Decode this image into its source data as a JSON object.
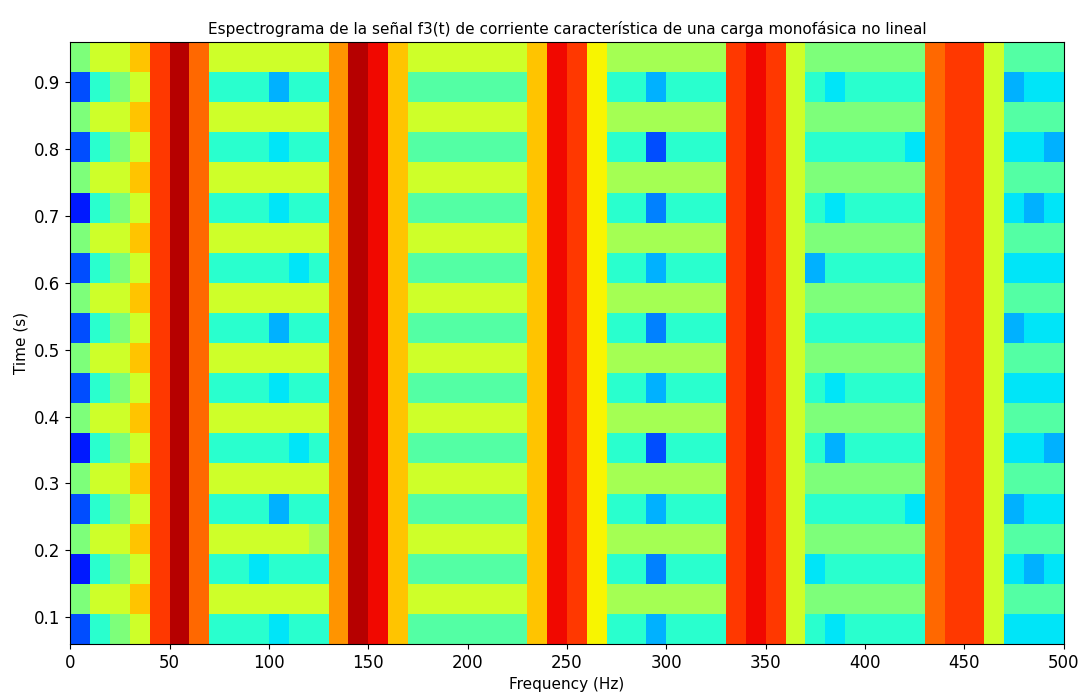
{
  "chart_data": {
    "type": "heatmap",
    "title": "Espectrograma de la señal f3(t) de corriente característica de una carga monofásica no lineal",
    "x_label": "Frequency (Hz)",
    "y_label": "Time (s)",
    "color": "jet",
    "color_range": [
      0,
      10
    ],
    "xlim": [
      0,
      500
    ],
    "ylim": [
      0.06,
      0.96
    ],
    "xticks": [
      0,
      50,
      100,
      150,
      200,
      250,
      300,
      350,
      400,
      450,
      500
    ],
    "yticks": [
      0.1,
      0.2,
      0.3,
      0.4,
      0.5,
      0.6,
      0.7,
      0.8,
      0.9
    ],
    "frequency_edges": [
      0,
      10,
      20,
      30,
      40,
      50,
      60,
      70,
      80,
      90,
      100,
      110,
      120,
      130,
      140,
      150,
      160,
      170,
      180,
      190,
      200,
      210,
      220,
      230,
      240,
      250,
      260,
      270,
      280,
      290,
      300,
      310,
      320,
      330,
      340,
      350,
      360,
      370,
      380,
      390,
      400,
      410,
      420,
      430,
      440,
      450,
      460,
      470,
      480,
      490,
      500
    ],
    "time_edges": [
      0.06,
      0.105,
      0.15,
      0.195,
      0.24,
      0.285,
      0.33,
      0.375,
      0.42,
      0.465,
      0.51,
      0.555,
      0.6,
      0.645,
      0.69,
      0.735,
      0.78,
      0.825,
      0.87,
      0.915,
      0.96
    ],
    "cells": [
      [
        2,
        4,
        5,
        6,
        8.5,
        9.5,
        8,
        4,
        4,
        4,
        3.5,
        4,
        4,
        7.5,
        9.5,
        9,
        7,
        4.5,
        4.5,
        4.5,
        4.5,
        4.5,
        4.5,
        7,
        9,
        8.5,
        6.5,
        4,
        4,
        3,
        4,
        4,
        4,
        8.5,
        9,
        8.5,
        6,
        4,
        3.5,
        4,
        4,
        4,
        4,
        8,
        8.5,
        8.5,
        6,
        3.5,
        3.5,
        3.5
      ],
      [
        5,
        6,
        6,
        7,
        8.5,
        9.5,
        8,
        6,
        6,
        6,
        6,
        6,
        6,
        7.5,
        9.5,
        9,
        7,
        6,
        6,
        6,
        6,
        6,
        6,
        7,
        9,
        8.5,
        6.5,
        5.5,
        5.5,
        5.5,
        5.5,
        5.5,
        5.5,
        8.5,
        9,
        8.5,
        6,
        5,
        5,
        5,
        5,
        5,
        5,
        8,
        8.5,
        8.5,
        6,
        4.5,
        4.5,
        4.5
      ],
      [
        1.5,
        4,
        5,
        6,
        8.5,
        9.5,
        8,
        4,
        4,
        3.5,
        4,
        4,
        4,
        7.5,
        9.5,
        9,
        7,
        4.5,
        4.5,
        4.5,
        4.5,
        4.5,
        4.5,
        7,
        9,
        8.5,
        6.5,
        4,
        4,
        2.5,
        4,
        4,
        4,
        8.5,
        9,
        8.5,
        6,
        3.5,
        4,
        4,
        4,
        4,
        4,
        8,
        8.5,
        8.5,
        6,
        3.5,
        3,
        3.5
      ],
      [
        5,
        6,
        6,
        7,
        8.5,
        9.5,
        8,
        6,
        6,
        6,
        6,
        6,
        5.5,
        7.5,
        9.5,
        9,
        7,
        6,
        6,
        6,
        6,
        6,
        6,
        7,
        9,
        8.5,
        6.5,
        5.5,
        5.5,
        5.5,
        5.5,
        5.5,
        5.5,
        8.5,
        9,
        8.5,
        6,
        5,
        5,
        5,
        5,
        5,
        5,
        8,
        8.5,
        8.5,
        6,
        4.5,
        4.5,
        4.5
      ],
      [
        2,
        4,
        5,
        6,
        8.5,
        9.5,
        8,
        4,
        4,
        4,
        3,
        4,
        4,
        7.5,
        9.5,
        9,
        7,
        4.5,
        4.5,
        4.5,
        4.5,
        4.5,
        4.5,
        7,
        9,
        8.5,
        6.5,
        4,
        4,
        3,
        4,
        4,
        4,
        8.5,
        9,
        8.5,
        6,
        4,
        4,
        4,
        4,
        4,
        3.5,
        8,
        8.5,
        8.5,
        6,
        3,
        3.5,
        3.5
      ],
      [
        5,
        6,
        6,
        7,
        8.5,
        9.5,
        8,
        6,
        6,
        6,
        6,
        6,
        6,
        7.5,
        9.5,
        9,
        7,
        6,
        6,
        6,
        6,
        6,
        6,
        7,
        9,
        8.5,
        6.5,
        5.5,
        5.5,
        5.5,
        5.5,
        5.5,
        5.5,
        8.5,
        9,
        8.5,
        6,
        5,
        5,
        5,
        5,
        5,
        5,
        8,
        8.5,
        8.5,
        6,
        4.5,
        4.5,
        4.5
      ],
      [
        1.5,
        4,
        5,
        6,
        8.5,
        9.5,
        8,
        4,
        4,
        4,
        4,
        3.5,
        4,
        7.5,
        9.5,
        9,
        7,
        4.5,
        4.5,
        4.5,
        4.5,
        4.5,
        4.5,
        7,
        9,
        8.5,
        6.5,
        4,
        4,
        2,
        4,
        4,
        4,
        8.5,
        9,
        8.5,
        6,
        4,
        3,
        4,
        4,
        4,
        4,
        8,
        8.5,
        8.5,
        6,
        3.5,
        3.5,
        3
      ],
      [
        5,
        6,
        6,
        7,
        8.5,
        9.5,
        8,
        6,
        6,
        6,
        6,
        6,
        6,
        7.5,
        9.5,
        9,
        7,
        6,
        6,
        6,
        6,
        6,
        6,
        7,
        9,
        8.5,
        6.5,
        5.5,
        5.5,
        5.5,
        5.5,
        5.5,
        5.5,
        8.5,
        9,
        8.5,
        6,
        5,
        5,
        5,
        5,
        5,
        5,
        8,
        8.5,
        8.5,
        6,
        4.5,
        4.5,
        4.5
      ],
      [
        2,
        4,
        5,
        6,
        8.5,
        9.5,
        8,
        4,
        4,
        4,
        3.5,
        4,
        4,
        7.5,
        9.5,
        9,
        7,
        4.5,
        4.5,
        4.5,
        4.5,
        4.5,
        4.5,
        7,
        9,
        8.5,
        6.5,
        4,
        4,
        3,
        4,
        4,
        4,
        8.5,
        9,
        8.5,
        6,
        4,
        3.5,
        4,
        4,
        4,
        4,
        8,
        8.5,
        8.5,
        6,
        3.5,
        3.5,
        3.5
      ],
      [
        5,
        6,
        6,
        7,
        8.5,
        9.5,
        8,
        6,
        6,
        6,
        6,
        6,
        6,
        7.5,
        9.5,
        9,
        7,
        6,
        6,
        6,
        6,
        6,
        6,
        7,
        9,
        8.5,
        6.5,
        5.5,
        5.5,
        5.5,
        5.5,
        5.5,
        5.5,
        8.5,
        9,
        8.5,
        6,
        5,
        5,
        5,
        5,
        5,
        5,
        8,
        8.5,
        8.5,
        6,
        4.5,
        4.5,
        4.5
      ],
      [
        2,
        4,
        5,
        6,
        8.5,
        9.5,
        8,
        4,
        4,
        4,
        3,
        4,
        4,
        7.5,
        9.5,
        9,
        7,
        4.5,
        4.5,
        4.5,
        4.5,
        4.5,
        4.5,
        7,
        9,
        8.5,
        6.5,
        4,
        4,
        2.5,
        4,
        4,
        4,
        8.5,
        9,
        8.5,
        6,
        4,
        4,
        4,
        4,
        4,
        4,
        8,
        8.5,
        8.5,
        6,
        3,
        3.5,
        3.5
      ],
      [
        5,
        6,
        6,
        7,
        8.5,
        9.5,
        8,
        6,
        6,
        6,
        6,
        6,
        6,
        7.5,
        9.5,
        9,
        7,
        6,
        6,
        6,
        6,
        6,
        6,
        7,
        9,
        8.5,
        6.5,
        5.5,
        5.5,
        5.5,
        5.5,
        5.5,
        5.5,
        8.5,
        9,
        8.5,
        6,
        5,
        5,
        5,
        5,
        5,
        5,
        8,
        8.5,
        8.5,
        6,
        4.5,
        4.5,
        4.5
      ],
      [
        2,
        4,
        5,
        6,
        8.5,
        9.5,
        8,
        4,
        4,
        4,
        4,
        3.5,
        4,
        7.5,
        9.5,
        9,
        7,
        4.5,
        4.5,
        4.5,
        4.5,
        4.5,
        4.5,
        7,
        9,
        8.5,
        6.5,
        4,
        4,
        3,
        4,
        4,
        4,
        8.5,
        9,
        8.5,
        6,
        3,
        4,
        4,
        4,
        4,
        4,
        8,
        8.5,
        8.5,
        6,
        3.5,
        3.5,
        3.5
      ],
      [
        5,
        6,
        6,
        7,
        8.5,
        9.5,
        8,
        6,
        6,
        6,
        6,
        6,
        6,
        7.5,
        9.5,
        9,
        7,
        6,
        6,
        6,
        6,
        6,
        6,
        7,
        9,
        8.5,
        6.5,
        5.5,
        5.5,
        5.5,
        5.5,
        5.5,
        5.5,
        8.5,
        9,
        8.5,
        6,
        5,
        5,
        5,
        5,
        5,
        5,
        8,
        8.5,
        8.5,
        6,
        4.5,
        4.5,
        4.5
      ],
      [
        1.5,
        4,
        5,
        6,
        8.5,
        9.5,
        8,
        4,
        4,
        4,
        3.5,
        4,
        4,
        7.5,
        9.5,
        9,
        7,
        4.5,
        4.5,
        4.5,
        4.5,
        4.5,
        4.5,
        7,
        9,
        8.5,
        6.5,
        4,
        4,
        2.5,
        4,
        4,
        4,
        8.5,
        9,
        8.5,
        6,
        4,
        3.5,
        4,
        4,
        4,
        4,
        8,
        8.5,
        8.5,
        6,
        3.5,
        3,
        3.5
      ],
      [
        5,
        6,
        6,
        7,
        8.5,
        9.5,
        8,
        6,
        6,
        6,
        6,
        6,
        6,
        7.5,
        9.5,
        9,
        7,
        6,
        6,
        6,
        6,
        6,
        6,
        7,
        9,
        8.5,
        6.5,
        5.5,
        5.5,
        5.5,
        5.5,
        5.5,
        5.5,
        8.5,
        9,
        8.5,
        6,
        5,
        5,
        5,
        5,
        5,
        5,
        8,
        8.5,
        8.5,
        6,
        4.5,
        4.5,
        4.5
      ],
      [
        2,
        4,
        5,
        6,
        8.5,
        9.5,
        8,
        4,
        4,
        4,
        3.5,
        4,
        4,
        7.5,
        9.5,
        9,
        7,
        4.5,
        4.5,
        4.5,
        4.5,
        4.5,
        4.5,
        7,
        9,
        8.5,
        6.5,
        4,
        4,
        2,
        4,
        4,
        4,
        8.5,
        9,
        8.5,
        6,
        4,
        4,
        4,
        4,
        4,
        3.5,
        8,
        8.5,
        8.5,
        6,
        3.5,
        3.5,
        3
      ],
      [
        5,
        6,
        6,
        7,
        8.5,
        9.5,
        8,
        6,
        6,
        6,
        6,
        6,
        6,
        7.5,
        9.5,
        9,
        7,
        6,
        6,
        6,
        6,
        6,
        6,
        7,
        9,
        8.5,
        6.5,
        5.5,
        5.5,
        5.5,
        5.5,
        5.5,
        5.5,
        8.5,
        9,
        8.5,
        6,
        5,
        5,
        5,
        5,
        5,
        5,
        8,
        8.5,
        8.5,
        6,
        4.5,
        4.5,
        4.5
      ],
      [
        2,
        4,
        5,
        6,
        8.5,
        9.5,
        8,
        4,
        4,
        4,
        3,
        4,
        4,
        7.5,
        9.5,
        9,
        7,
        4.5,
        4.5,
        4.5,
        4.5,
        4.5,
        4.5,
        7,
        9,
        8.5,
        6.5,
        4,
        4,
        3,
        4,
        4,
        4,
        8.5,
        9,
        8.5,
        6,
        4,
        3.5,
        4,
        4,
        4,
        4,
        8,
        8.5,
        8.5,
        6,
        3,
        3.5,
        3.5
      ],
      [
        5,
        6,
        6,
        7,
        8.5,
        9.5,
        8,
        6,
        6,
        6,
        6,
        6,
        6,
        7.5,
        9.5,
        9,
        7,
        6,
        6,
        6,
        6,
        6,
        6,
        7,
        9,
        8.5,
        6.5,
        5.5,
        5.5,
        5.5,
        5.5,
        5.5,
        5.5,
        8.5,
        9,
        8.5,
        6,
        5,
        5,
        5,
        5,
        5,
        5,
        8,
        8.5,
        8.5,
        6,
        4.5,
        4.5,
        4.5
      ]
    ]
  }
}
